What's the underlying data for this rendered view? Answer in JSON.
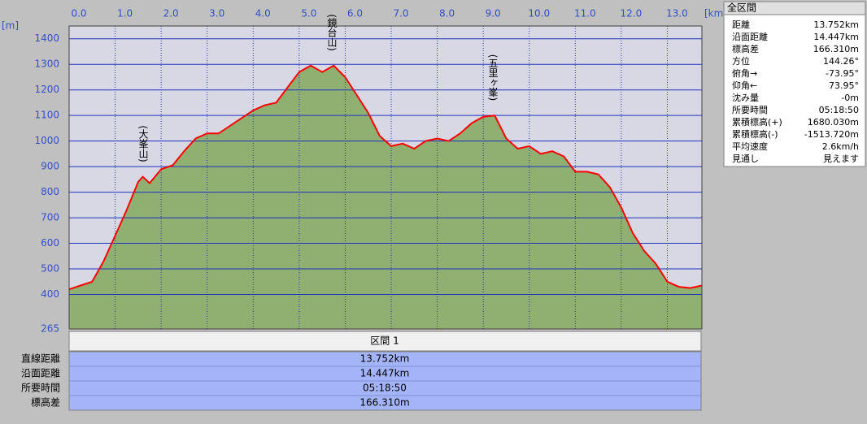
{
  "chart_data": {
    "type": "area",
    "x_unit": "[km]",
    "y_unit": "[m]",
    "x": [
      0,
      0.25,
      0.5,
      0.75,
      1.0,
      1.25,
      1.5,
      1.6,
      1.75,
      2.0,
      2.25,
      2.5,
      2.75,
      3.0,
      3.25,
      3.5,
      3.75,
      4.0,
      4.25,
      4.5,
      4.75,
      5.0,
      5.25,
      5.5,
      5.75,
      6.0,
      6.25,
      6.5,
      6.75,
      7.0,
      7.25,
      7.5,
      7.75,
      8.0,
      8.25,
      8.5,
      8.75,
      9.0,
      9.25,
      9.5,
      9.75,
      10.0,
      10.25,
      10.5,
      10.75,
      11.0,
      11.25,
      11.5,
      11.75,
      12.0,
      12.25,
      12.5,
      12.75,
      13.0,
      13.25,
      13.5,
      13.752
    ],
    "series": [
      {
        "color": "#ff0000",
        "fill": "#8fb070",
        "values": [
          420,
          435,
          450,
          530,
          630,
          730,
          840,
          860,
          835,
          890,
          905,
          960,
          1010,
          1030,
          1030,
          1060,
          1090,
          1120,
          1140,
          1150,
          1210,
          1270,
          1295,
          1270,
          1295,
          1250,
          1180,
          1110,
          1020,
          980,
          990,
          970,
          1000,
          1010,
          1000,
          1030,
          1070,
          1095,
          1100,
          1010,
          970,
          980,
          950,
          960,
          940,
          880,
          880,
          870,
          820,
          740,
          640,
          570,
          520,
          450,
          430,
          425,
          435
        ]
      }
    ],
    "xlim": [
      0,
      13.752
    ],
    "ylim": [
      265,
      1450
    ],
    "xticks": [
      {
        "value": 0,
        "label": "0.0"
      },
      {
        "value": 1,
        "label": "1.0"
      },
      {
        "value": 2,
        "label": "2.0"
      },
      {
        "value": 3,
        "label": "3.0"
      },
      {
        "value": 4,
        "label": "4.0"
      },
      {
        "value": 5,
        "label": "5.0"
      },
      {
        "value": 6,
        "label": "6.0"
      },
      {
        "value": 7,
        "label": "7.0"
      },
      {
        "value": 8,
        "label": "8.0"
      },
      {
        "value": 9,
        "label": "9.0"
      },
      {
        "value": 10,
        "label": "10.0"
      },
      {
        "value": 11,
        "label": "11.0"
      },
      {
        "value": 12,
        "label": "12.0"
      },
      {
        "value": 13,
        "label": "13.0"
      }
    ],
    "yticks": [
      265,
      400,
      500,
      600,
      700,
      800,
      900,
      1000,
      1100,
      1200,
      1300,
      1400
    ],
    "grid": true,
    "annotations": [
      {
        "text": "(大峯山)",
        "x": 1.6
      },
      {
        "text": "(鏡台山)",
        "x": 5.7
      },
      {
        "text": "(五里ヶ峯)",
        "x": 9.2
      }
    ]
  },
  "panel": {
    "title": "全区間",
    "rows": [
      [
        "距離",
        "13.752km"
      ],
      [
        "沿面距離",
        "14.447km"
      ],
      [
        "標高差",
        "166.310m"
      ],
      [
        "方位",
        "144.26°"
      ],
      [
        "俯角→",
        "-73.95°"
      ],
      [
        "仰角←",
        "73.95°"
      ],
      [
        "沈み量",
        "-0m"
      ],
      [
        "所要時間",
        "05:18:50"
      ],
      [
        "累積標高(+)",
        "1680.030m"
      ],
      [
        "累積標高(-)",
        "-1513.720m"
      ],
      [
        "平均速度",
        "2.6km/h"
      ],
      [
        "見通し",
        "見えます"
      ]
    ]
  },
  "table": {
    "header": "区間 1",
    "rows": [
      [
        "直線距離",
        "13.752km"
      ],
      [
        "沿面距離",
        "14.447km"
      ],
      [
        "所要時間",
        "05:18:50"
      ],
      [
        "標高差",
        "166.310m"
      ]
    ]
  }
}
